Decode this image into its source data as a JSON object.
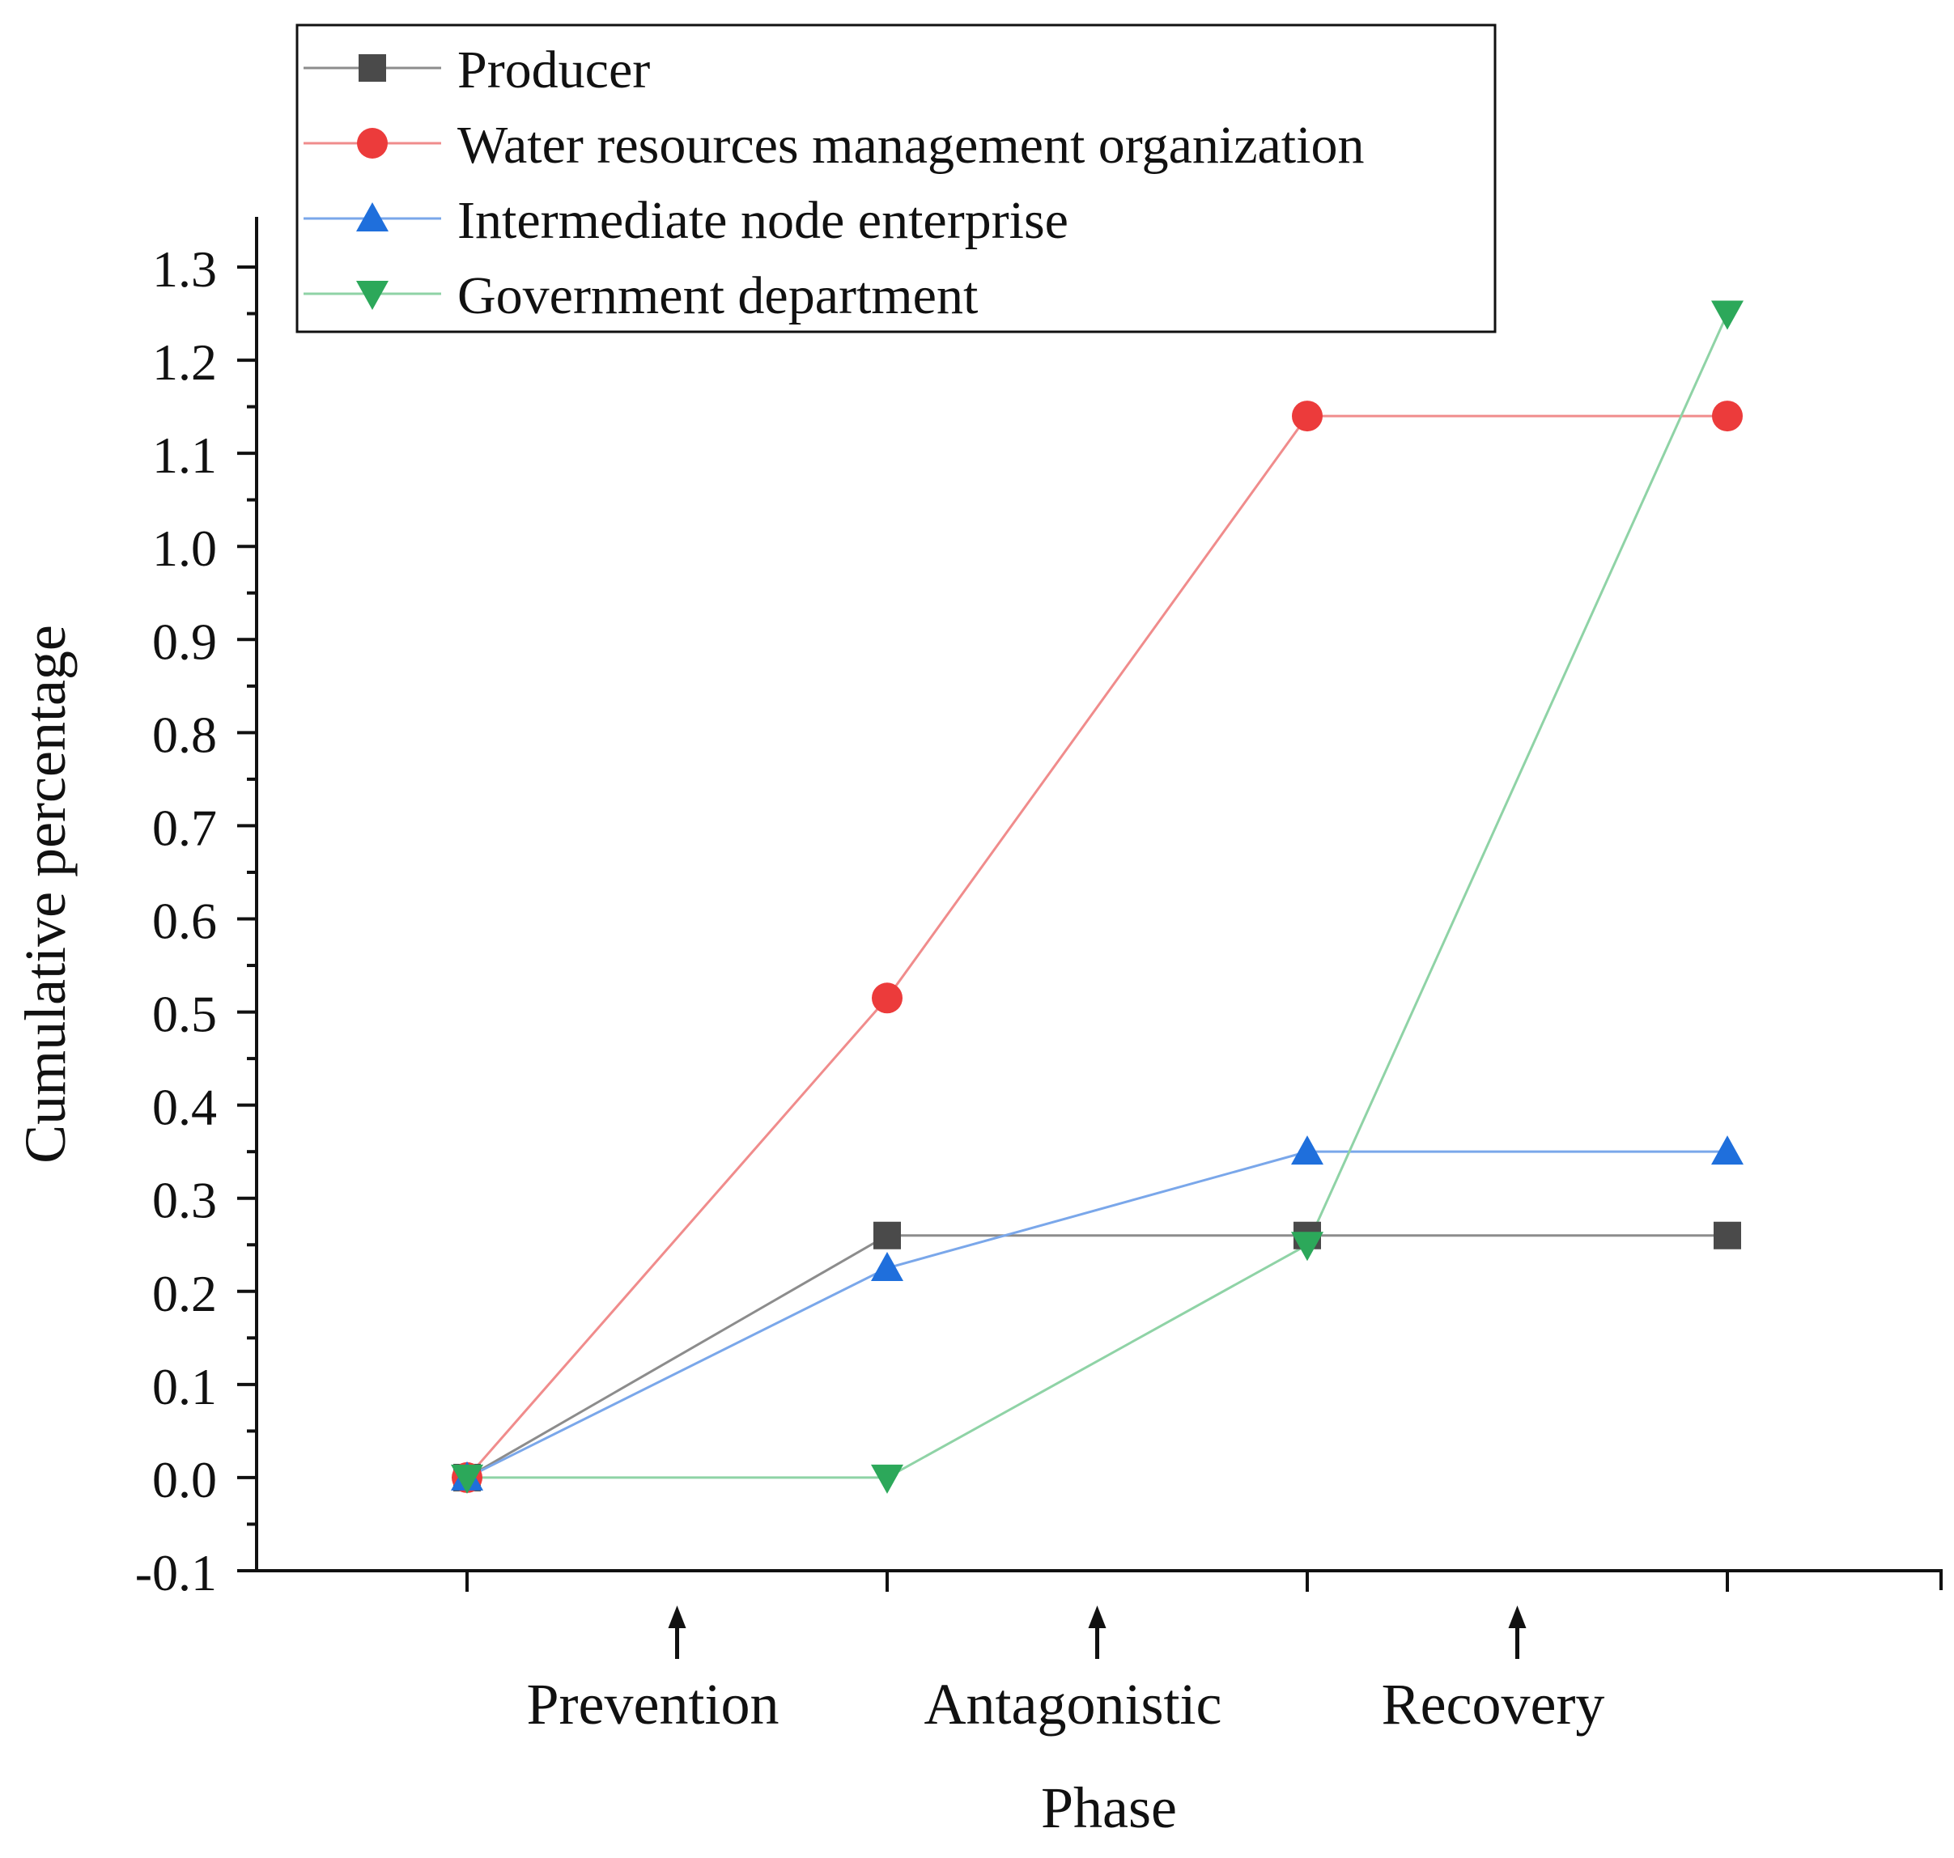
{
  "chart_data": {
    "type": "line",
    "title": "",
    "xlabel": "Phase",
    "ylabel": "Cumulative percentage",
    "ylim": [
      -0.1,
      1.3
    ],
    "yticks": [
      "-0.1",
      "0.0",
      "0.1",
      "0.2",
      "0.3",
      "0.4",
      "0.5",
      "0.6",
      "0.7",
      "0.8",
      "0.9",
      "1.0",
      "1.1",
      "1.2",
      "1.3"
    ],
    "x": [
      0,
      1,
      2,
      3
    ],
    "phase_labels": [
      {
        "label": "Prevention",
        "x": 0.5
      },
      {
        "label": "Antagonistic",
        "x": 1.5
      },
      {
        "label": "Recovery",
        "x": 2.5
      }
    ],
    "legend_position": "top-left",
    "grid": false,
    "series": [
      {
        "name": "Producer",
        "color": "#4a4a4a",
        "line_color": "#8c8c8c",
        "marker": "square",
        "values": [
          0.0,
          0.26,
          0.26,
          0.26
        ]
      },
      {
        "name": "Water resources management organization",
        "color": "#ec3b3b",
        "line_color": "#f08c8c",
        "marker": "circle",
        "values": [
          0.0,
          0.515,
          1.14,
          1.14
        ]
      },
      {
        "name": "Intermediate node enterprise",
        "color": "#1f6fdc",
        "line_color": "#7aa7ea",
        "marker": "triangle-up",
        "values": [
          0.0,
          0.225,
          0.35,
          0.35
        ]
      },
      {
        "name": "Government department",
        "color": "#2ca85a",
        "line_color": "#8fd3a6",
        "marker": "triangle-down",
        "values": [
          0.0,
          0.0,
          0.25,
          1.25
        ]
      }
    ]
  }
}
